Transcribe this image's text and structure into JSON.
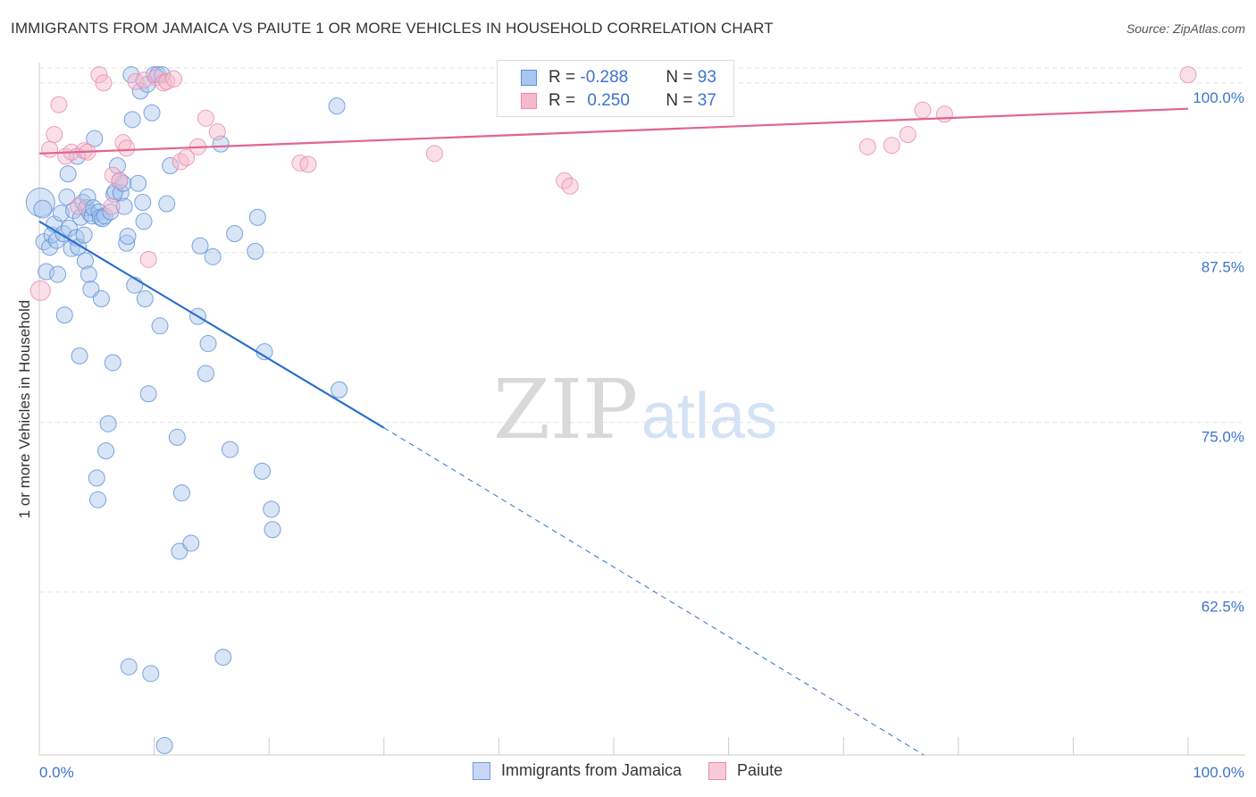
{
  "header": {
    "title": "IMMIGRANTS FROM JAMAICA VS PAIUTE 1 OR MORE VEHICLES IN HOUSEHOLD CORRELATION CHART",
    "source": "Source: ZipAtlas.com"
  },
  "watermark": {
    "zip": "ZIP",
    "atlas": "atlas"
  },
  "legend_top": {
    "rows": [
      {
        "r_label": "R = ",
        "r_value": "-0.288",
        "n_label": "N = ",
        "n_value": "93"
      },
      {
        "r_label": "R = ",
        "r_value": "0.250",
        "n_label": "N = ",
        "n_value": "37"
      }
    ]
  },
  "legend_bottom": {
    "items": [
      {
        "label": "Immigrants from Jamaica"
      },
      {
        "label": "Paiute"
      }
    ]
  },
  "colors": {
    "blue_fill": "#a9c6ee",
    "blue_stroke": "#5b8fd6",
    "blue_line": "#2f6fd0",
    "pink_fill": "#f6b9cb",
    "pink_stroke": "#e98aa8",
    "pink_line": "#e0648c",
    "grid": "#e2e2e2",
    "axis_text": "#3d74cf"
  },
  "chart_data": {
    "type": "scatter",
    "title": "IMMIGRANTS FROM JAMAICA VS PAIUTE 1 OR MORE VEHICLES IN HOUSEHOLD CORRELATION CHART",
    "xlabel": "",
    "ylabel": "1 or more Vehicles in Household",
    "xlim": [
      0,
      100
    ],
    "ylim": [
      50.5,
      101.5
    ],
    "x_tick_labels": [
      {
        "value": 0,
        "label": "0.0%"
      },
      {
        "value": 100,
        "label": "100.0%"
      }
    ],
    "y_tick_labels": [
      {
        "value": 100,
        "label": "100.0%"
      },
      {
        "value": 87.5,
        "label": "87.5%"
      },
      {
        "value": 75,
        "label": "75.0%"
      },
      {
        "value": 62.5,
        "label": "62.5%"
      }
    ],
    "x_minor_ticks": [
      10,
      20,
      30,
      40,
      50,
      60,
      70,
      80,
      90,
      100
    ],
    "series": [
      {
        "name": "Immigrants from Jamaica",
        "color": "blue",
        "points": [
          [
            0.1,
            91.2,
            16
          ],
          [
            0.3,
            90.7,
            10
          ],
          [
            0.4,
            88.3,
            9
          ],
          [
            0.6,
            86.1,
            9
          ],
          [
            0.9,
            87.9,
            9
          ],
          [
            1.1,
            88.8,
            9
          ],
          [
            1.3,
            89.6,
            9
          ],
          [
            1.5,
            88.4,
            9
          ],
          [
            1.6,
            85.9,
            9
          ],
          [
            1.9,
            90.4,
            9
          ],
          [
            2.1,
            88.9,
            9
          ],
          [
            2.2,
            82.9,
            9
          ],
          [
            2.4,
            91.6,
            9
          ],
          [
            2.5,
            93.3,
            9
          ],
          [
            2.6,
            89.3,
            9
          ],
          [
            2.8,
            87.8,
            9
          ],
          [
            3.0,
            90.6,
            9
          ],
          [
            3.2,
            88.6,
            9
          ],
          [
            3.3,
            94.6,
            9
          ],
          [
            3.4,
            87.9,
            9
          ],
          [
            3.5,
            79.9,
            9
          ],
          [
            3.6,
            90.1,
            9
          ],
          [
            3.8,
            91.2,
            9
          ],
          [
            3.9,
            88.8,
            9
          ],
          [
            4.0,
            86.9,
            9
          ],
          [
            4.1,
            90.8,
            9
          ],
          [
            4.2,
            91.6,
            9
          ],
          [
            4.3,
            85.9,
            9
          ],
          [
            4.4,
            90.4,
            9
          ],
          [
            4.5,
            84.8,
            9
          ],
          [
            4.6,
            90.2,
            9
          ],
          [
            4.7,
            90.8,
            9
          ],
          [
            4.8,
            95.9,
            9
          ],
          [
            5.0,
            70.9,
            9
          ],
          [
            5.1,
            69.3,
            9
          ],
          [
            5.2,
            90.5,
            9
          ],
          [
            5.3,
            90.1,
            9
          ],
          [
            5.4,
            84.1,
            9
          ],
          [
            5.5,
            90.0,
            9
          ],
          [
            5.7,
            90.2,
            9
          ],
          [
            5.8,
            72.9,
            9
          ],
          [
            6.0,
            74.9,
            9
          ],
          [
            6.2,
            90.5,
            9
          ],
          [
            6.4,
            79.4,
            9
          ],
          [
            6.5,
            91.8,
            9
          ],
          [
            6.6,
            92.0,
            9
          ],
          [
            6.8,
            93.9,
            9
          ],
          [
            7.0,
            92.8,
            9
          ],
          [
            7.1,
            91.9,
            9
          ],
          [
            7.3,
            92.6,
            9
          ],
          [
            7.4,
            90.9,
            9
          ],
          [
            7.6,
            88.2,
            9
          ],
          [
            7.7,
            88.7,
            9
          ],
          [
            7.8,
            57.0,
            9
          ],
          [
            8.0,
            100.6,
            9
          ],
          [
            8.1,
            97.3,
            9
          ],
          [
            8.3,
            85.1,
            9
          ],
          [
            8.6,
            92.6,
            9
          ],
          [
            8.8,
            99.4,
            9
          ],
          [
            9.0,
            91.2,
            9
          ],
          [
            9.1,
            89.8,
            9
          ],
          [
            9.2,
            84.1,
            9
          ],
          [
            9.4,
            99.9,
            9
          ],
          [
            9.5,
            77.1,
            9
          ],
          [
            9.7,
            56.5,
            9
          ],
          [
            9.8,
            97.8,
            9
          ],
          [
            10.0,
            100.6,
            9
          ],
          [
            10.3,
            100.6,
            9
          ],
          [
            10.5,
            82.1,
            9
          ],
          [
            10.7,
            100.6,
            9
          ],
          [
            10.9,
            51.2,
            9
          ],
          [
            11.1,
            91.1,
            9
          ],
          [
            11.4,
            93.9,
            9
          ],
          [
            12.0,
            73.9,
            9
          ],
          [
            12.2,
            65.5,
            9
          ],
          [
            12.4,
            69.8,
            9
          ],
          [
            13.2,
            66.1,
            9
          ],
          [
            13.8,
            82.8,
            9
          ],
          [
            14.0,
            88.0,
            9
          ],
          [
            14.5,
            78.6,
            9
          ],
          [
            14.7,
            80.8,
            9
          ],
          [
            15.1,
            87.2,
            9
          ],
          [
            15.8,
            95.5,
            9
          ],
          [
            16.0,
            57.7,
            9
          ],
          [
            16.6,
            73.0,
            9
          ],
          [
            17.0,
            88.9,
            9
          ],
          [
            18.8,
            87.6,
            9
          ],
          [
            19.0,
            90.1,
            9
          ],
          [
            19.4,
            71.4,
            9
          ],
          [
            19.6,
            80.2,
            9
          ],
          [
            20.2,
            68.6,
            9
          ],
          [
            20.3,
            67.1,
            9
          ],
          [
            26.1,
            77.4,
            9
          ],
          [
            25.9,
            98.3,
            9
          ]
        ]
      },
      {
        "name": "Paiute",
        "color": "pink",
        "points": [
          [
            0.1,
            84.7,
            11
          ],
          [
            0.9,
            95.1,
            9
          ],
          [
            1.3,
            96.2,
            9
          ],
          [
            1.7,
            98.4,
            9
          ],
          [
            2.3,
            94.6,
            9
          ],
          [
            2.8,
            94.9,
            9
          ],
          [
            3.4,
            90.9,
            9
          ],
          [
            3.9,
            95.0,
            9
          ],
          [
            4.2,
            94.9,
            9
          ],
          [
            5.2,
            100.6,
            9
          ],
          [
            5.6,
            100.0,
            9
          ],
          [
            6.3,
            90.9,
            9
          ],
          [
            6.4,
            93.2,
            9
          ],
          [
            7.0,
            92.8,
            9
          ],
          [
            7.3,
            95.6,
            9
          ],
          [
            7.6,
            95.2,
            9
          ],
          [
            8.4,
            100.1,
            9
          ],
          [
            9.1,
            100.2,
            9
          ],
          [
            9.5,
            87.0,
            9
          ],
          [
            10.2,
            100.4,
            9
          ],
          [
            10.8,
            100.0,
            9
          ],
          [
            11.1,
            100.1,
            9
          ],
          [
            11.7,
            100.3,
            9
          ],
          [
            12.3,
            94.2,
            9
          ],
          [
            12.8,
            94.5,
            9
          ],
          [
            13.8,
            95.3,
            9
          ],
          [
            14.5,
            97.4,
            9
          ],
          [
            15.5,
            96.4,
            9
          ],
          [
            22.7,
            94.1,
            9
          ],
          [
            23.4,
            94.0,
            9
          ],
          [
            34.4,
            94.8,
            9
          ],
          [
            45.7,
            92.8,
            9
          ],
          [
            46.2,
            92.4,
            9
          ],
          [
            72.1,
            95.3,
            9
          ],
          [
            74.2,
            95.4,
            9
          ],
          [
            75.6,
            96.2,
            9
          ],
          [
            76.9,
            98.0,
            9
          ],
          [
            78.8,
            97.7,
            9
          ],
          [
            100.0,
            100.6,
            9
          ]
        ]
      }
    ],
    "trend_lines": [
      {
        "series": "Immigrants from Jamaica",
        "solid": [
          [
            0,
            89.8
          ],
          [
            30,
            74.6
          ]
        ],
        "dashed": [
          [
            30,
            74.6
          ],
          [
            77,
            50.5
          ]
        ]
      },
      {
        "series": "Paiute",
        "solid": [
          [
            0,
            94.8
          ],
          [
            100,
            98.1
          ]
        ]
      }
    ]
  }
}
